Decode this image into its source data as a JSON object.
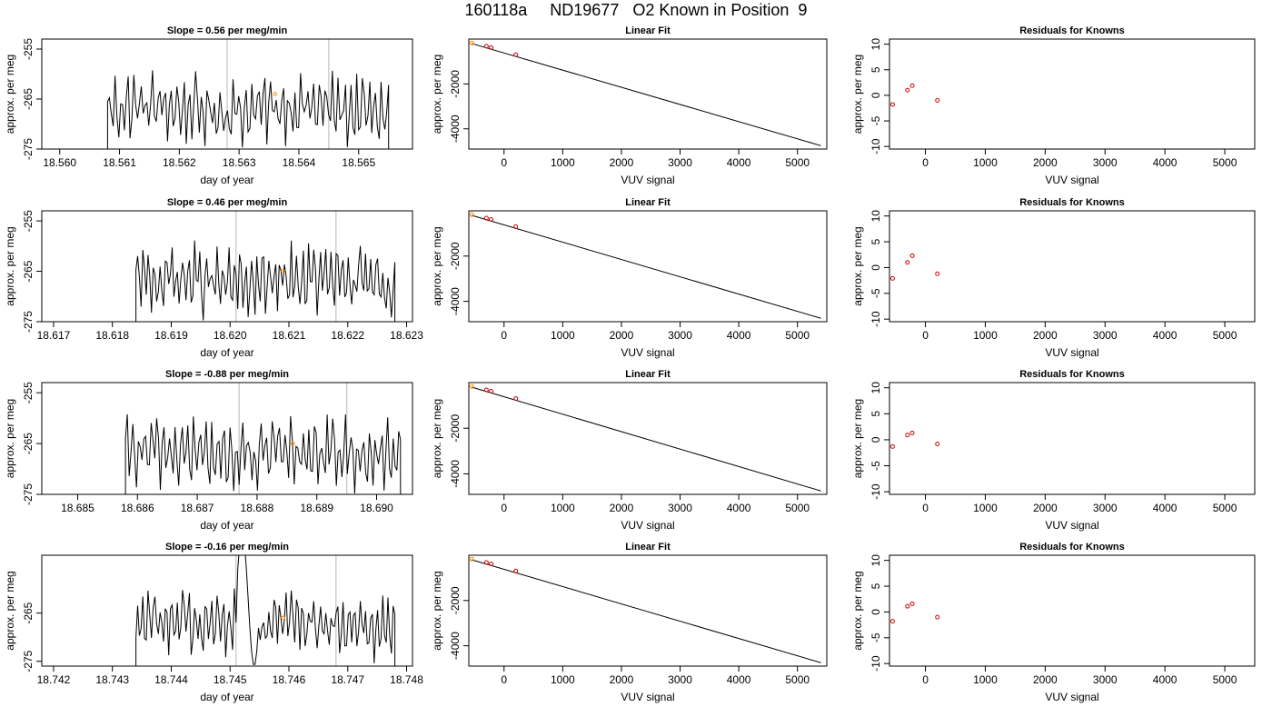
{
  "title": "160118a     ND19677   O2 Known in Position  9",
  "colors": {
    "trace": "#000000",
    "vline": "#c8c8c8",
    "marker": "#ff8c00",
    "residual": "#cc0000",
    "frame": "#000000"
  },
  "chart_data": [
    {
      "type": "line",
      "row": 1,
      "title": "Slope =  0.56  per meg/min",
      "xlabel": "day of year",
      "ylabel": "approx. per meg",
      "xlim": [
        18.5597,
        18.5659
      ],
      "ylim": [
        -275,
        -253
      ],
      "xticks": [
        "18.560",
        "18.561",
        "18.562",
        "18.563",
        "18.564",
        "18.565"
      ],
      "yticks": [
        "-275",
        "-265",
        "-255"
      ],
      "trace_start": 18.5608,
      "trace_end": 18.5655,
      "vlines": [
        18.5628,
        18.5645
      ],
      "marker": {
        "x": 18.5636,
        "y": -264
      }
    },
    {
      "type": "scatter",
      "row": 1,
      "title": "Linear Fit",
      "xlabel": "VUV signal",
      "ylabel": "approx. per meg",
      "xlim": [
        -600,
        5500
      ],
      "ylim": [
        -4900,
        0
      ],
      "xticks": [
        "0",
        "1000",
        "2000",
        "3000",
        "4000",
        "5000"
      ],
      "yticks": [
        "-4000",
        "-2000"
      ],
      "fit_line": [
        [
          -550,
          -200
        ],
        [
          5400,
          -4750
        ]
      ],
      "points": [
        [
          -548,
          -170
        ],
        [
          -300,
          -320
        ],
        [
          -220,
          -380
        ],
        [
          200,
          -700
        ]
      ]
    },
    {
      "type": "scatter",
      "row": 1,
      "title": "Residuals for Knowns",
      "xlabel": "VUV signal",
      "ylabel": "approx. per meg",
      "xlim": [
        -600,
        5500
      ],
      "ylim": [
        -10.5,
        11
      ],
      "xticks": [
        "0",
        "1000",
        "2000",
        "3000",
        "4000",
        "5000"
      ],
      "yticks": [
        "-10",
        "-5",
        "0",
        "5",
        "10"
      ],
      "points": [
        [
          -548,
          -1.8
        ],
        [
          -300,
          1.0
        ],
        [
          -220,
          1.9
        ],
        [
          200,
          -1.0
        ]
      ]
    },
    {
      "type": "line",
      "row": 2,
      "title": "Slope =  0.46  per meg/min",
      "xlabel": "day of year",
      "ylabel": "approx. per meg",
      "xlim": [
        18.6168,
        18.6231
      ],
      "ylim": [
        -275,
        -253
      ],
      "xticks": [
        "18.617",
        "18.618",
        "18.619",
        "18.620",
        "18.621",
        "18.622",
        "18.623"
      ],
      "yticks": [
        "-275",
        "-265",
        "-255"
      ],
      "trace_start": 18.6184,
      "trace_end": 18.6228,
      "vlines": [
        18.6201,
        18.6218
      ],
      "marker": {
        "x": 18.6209,
        "y": -265
      }
    },
    {
      "type": "scatter",
      "row": 2,
      "title": "Linear Fit",
      "xlabel": "VUV signal",
      "ylabel": "approx. per meg",
      "xlim": [
        -600,
        5500
      ],
      "ylim": [
        -4900,
        0
      ],
      "xticks": [
        "0",
        "1000",
        "2000",
        "3000",
        "4000",
        "5000"
      ],
      "yticks": [
        "-4000",
        "-2000"
      ],
      "fit_line": [
        [
          -550,
          -200
        ],
        [
          5400,
          -4750
        ]
      ],
      "points": [
        [
          -548,
          -170
        ],
        [
          -300,
          -320
        ],
        [
          -220,
          -380
        ],
        [
          200,
          -700
        ]
      ]
    },
    {
      "type": "scatter",
      "row": 2,
      "title": "Residuals for Knowns",
      "xlabel": "VUV signal",
      "ylabel": "approx. per meg",
      "xlim": [
        -600,
        5500
      ],
      "ylim": [
        -10.5,
        11
      ],
      "xticks": [
        "0",
        "1000",
        "2000",
        "3000",
        "4000",
        "5000"
      ],
      "yticks": [
        "-10",
        "-5",
        "0",
        "5",
        "10"
      ],
      "points": [
        [
          -548,
          -2.1
        ],
        [
          -300,
          1.0
        ],
        [
          -220,
          2.3
        ],
        [
          200,
          -1.2
        ]
      ]
    },
    {
      "type": "line",
      "row": 3,
      "title": "Slope =  -0.88  per meg/min",
      "xlabel": "day of year",
      "ylabel": "approx. per meg",
      "xlim": [
        18.6844,
        18.6906
      ],
      "ylim": [
        -275,
        -253
      ],
      "xticks": [
        "18.685",
        "18.686",
        "18.687",
        "18.688",
        "18.689",
        "18.690"
      ],
      "yticks": [
        "-275",
        "-265",
        "-255"
      ],
      "trace_start": 18.6858,
      "trace_end": 18.6904,
      "vlines": [
        18.6877,
        18.6895
      ],
      "marker": {
        "x": 18.6886,
        "y": -265
      }
    },
    {
      "type": "scatter",
      "row": 3,
      "title": "Linear Fit",
      "xlabel": "VUV signal",
      "ylabel": "approx. per meg",
      "xlim": [
        -600,
        5500
      ],
      "ylim": [
        -4900,
        0
      ],
      "xticks": [
        "0",
        "1000",
        "2000",
        "3000",
        "4000",
        "5000"
      ],
      "yticks": [
        "-4000",
        "-2000"
      ],
      "fit_line": [
        [
          -550,
          -200
        ],
        [
          5400,
          -4750
        ]
      ],
      "points": [
        [
          -548,
          -170
        ],
        [
          -300,
          -320
        ],
        [
          -220,
          -380
        ],
        [
          200,
          -700
        ]
      ]
    },
    {
      "type": "scatter",
      "row": 3,
      "title": "Residuals for Knowns",
      "xlabel": "VUV signal",
      "ylabel": "approx. per meg",
      "xlim": [
        -600,
        5500
      ],
      "ylim": [
        -10.5,
        11
      ],
      "xticks": [
        "0",
        "1000",
        "2000",
        "3000",
        "4000",
        "5000"
      ],
      "yticks": [
        "-10",
        "-5",
        "0",
        "5",
        "10"
      ],
      "points": [
        [
          -548,
          -1.3
        ],
        [
          -300,
          0.9
        ],
        [
          -220,
          1.3
        ],
        [
          200,
          -0.8
        ]
      ]
    },
    {
      "type": "line",
      "row": 4,
      "title": "Slope =  -0.16  per meg/min",
      "xlabel": "day of year",
      "ylabel": "approx. per meg",
      "xlim": [
        18.7418,
        18.7481
      ],
      "ylim": [
        -276,
        -253
      ],
      "xticks": [
        "18.742",
        "18.743",
        "18.744",
        "18.745",
        "18.746",
        "18.747",
        "18.748"
      ],
      "yticks": [
        "-275",
        "-265"
      ],
      "trace_start": 18.7434,
      "trace_end": 18.7478,
      "vlines": [
        18.7451,
        18.7468
      ],
      "marker": {
        "x": 18.7459,
        "y": -266
      }
    },
    {
      "type": "scatter",
      "row": 4,
      "title": "Linear Fit",
      "xlabel": "VUV signal",
      "ylabel": "approx. per meg",
      "xlim": [
        -600,
        5500
      ],
      "ylim": [
        -4900,
        0
      ],
      "xticks": [
        "0",
        "1000",
        "2000",
        "3000",
        "4000",
        "5000"
      ],
      "yticks": [
        "-4000",
        "-2000"
      ],
      "fit_line": [
        [
          -550,
          -200
        ],
        [
          5400,
          -4750
        ]
      ],
      "points": [
        [
          -548,
          -170
        ],
        [
          -300,
          -320
        ],
        [
          -220,
          -380
        ],
        [
          200,
          -700
        ]
      ]
    },
    {
      "type": "scatter",
      "row": 4,
      "title": "Residuals for Knowns",
      "xlabel": "VUV signal",
      "ylabel": "approx. per meg",
      "xlim": [
        -600,
        5500
      ],
      "ylim": [
        -10.5,
        11
      ],
      "xticks": [
        "0",
        "1000",
        "2000",
        "3000",
        "4000",
        "5000"
      ],
      "yticks": [
        "-10",
        "-5",
        "0",
        "5",
        "10"
      ],
      "points": [
        [
          -548,
          -1.8
        ],
        [
          -300,
          1.1
        ],
        [
          -220,
          1.6
        ],
        [
          200,
          -1.0
        ]
      ]
    }
  ]
}
